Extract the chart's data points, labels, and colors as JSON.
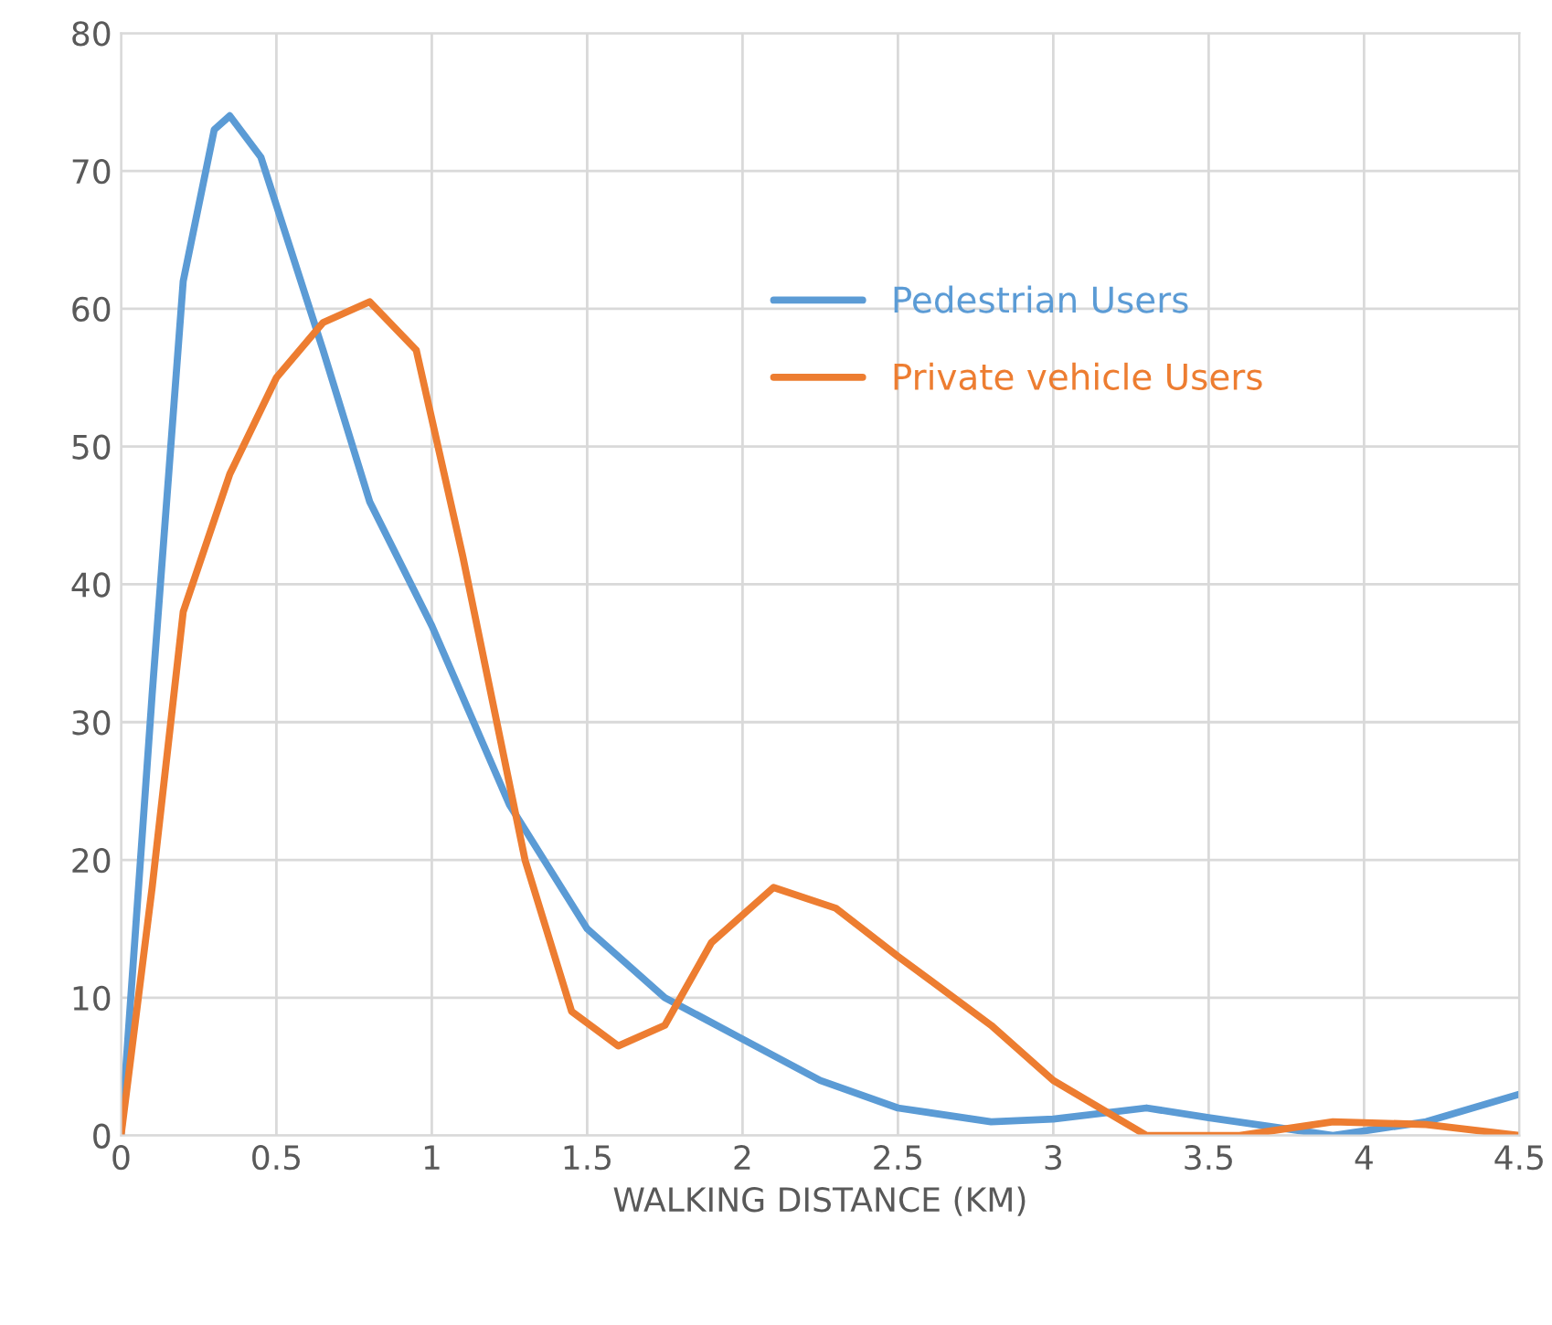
{
  "chart_data": {
    "type": "line",
    "xlabel": "WALKING DISTANCE (KM)",
    "xlim": [
      0,
      4.5
    ],
    "xticks": [
      0,
      0.5,
      1,
      1.5,
      2,
      2.5,
      3,
      3.5,
      4,
      4.5
    ],
    "ylim": [
      0,
      80
    ],
    "yticks": [
      0,
      10,
      20,
      30,
      40,
      50,
      60,
      70,
      80
    ],
    "grid": true,
    "legend": "top right",
    "marker": "none",
    "line_style": "solid",
    "series": [
      {
        "name": "Pedestrian Users",
        "color": "#5b9bd5",
        "x": [
          0,
          0.1,
          0.2,
          0.3,
          0.35,
          0.45,
          0.55,
          0.65,
          0.8,
          1.0,
          1.25,
          1.5,
          1.75,
          2.0,
          2.25,
          2.5,
          2.8,
          3.0,
          3.3,
          3.5,
          3.9,
          4.2,
          4.5
        ],
        "values": [
          0,
          32,
          62,
          73,
          74,
          71,
          64,
          57,
          46,
          37,
          24,
          15,
          10,
          7,
          4,
          2,
          1,
          1.2,
          2,
          1.3,
          0,
          1,
          3
        ]
      },
      {
        "name": "Private vehicle Users",
        "color": "#ed7d31",
        "x": [
          0,
          0.1,
          0.2,
          0.35,
          0.5,
          0.65,
          0.8,
          0.95,
          1.1,
          1.3,
          1.45,
          1.6,
          1.75,
          1.9,
          2.1,
          2.3,
          2.5,
          2.8,
          3.0,
          3.3,
          3.6,
          3.9,
          4.2,
          4.5
        ],
        "values": [
          0,
          18,
          38,
          48,
          55,
          59,
          60.5,
          57,
          42,
          20,
          9,
          6.5,
          8,
          14,
          18,
          16.5,
          13,
          8,
          4,
          0,
          0,
          1,
          0.8,
          0
        ]
      }
    ]
  }
}
